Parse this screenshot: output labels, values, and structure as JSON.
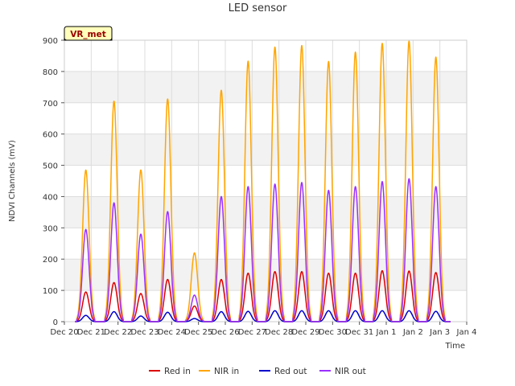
{
  "chart_data": {
    "type": "line",
    "title": "LED sensor",
    "xlabel": "Time",
    "ylabel": "NDVI Channels (mV)",
    "ylim": [
      0,
      900
    ],
    "yticks": [
      0,
      100,
      200,
      300,
      400,
      500,
      600,
      700,
      800,
      900
    ],
    "xlim": [
      0,
      15
    ],
    "xtick_labels": [
      "Dec 20",
      "Dec 21",
      "Dec 22",
      "Dec 23",
      "Dec 24",
      "Dec 25",
      "Dec 26",
      "Dec 27",
      "Dec 28",
      "Dec 29",
      "Dec 30",
      "Dec 31",
      "Jan 1",
      "Jan 2",
      "Jan 3",
      "Jan 4"
    ],
    "annotation": "VR_met",
    "grid": true,
    "legend_position": "bottom-center",
    "day_centers": [
      0.8,
      1.85,
      2.85,
      3.85,
      4.85,
      5.85,
      6.85,
      7.85,
      8.85,
      9.85,
      10.85,
      11.85,
      12.85,
      13.85
    ],
    "series": [
      {
        "name": "Red in",
        "color": "#dd0000",
        "peaks": [
          95,
          125,
          90,
          135,
          50,
          135,
          155,
          160,
          160,
          155,
          155,
          163,
          162,
          157
        ]
      },
      {
        "name": "NIR in",
        "color": "#ffa500",
        "peaks": [
          485,
          705,
          485,
          712,
          220,
          740,
          833,
          878,
          883,
          832,
          862,
          890,
          897,
          846
        ]
      },
      {
        "name": "Red out",
        "color": "#0000cc",
        "peaks": [
          20,
          32,
          18,
          30,
          10,
          32,
          33,
          35,
          35,
          35,
          35,
          35,
          35,
          33
        ]
      },
      {
        "name": "NIR out",
        "color": "#9b30ff",
        "peaks": [
          295,
          380,
          280,
          352,
          85,
          400,
          432,
          440,
          445,
          420,
          432,
          448,
          457,
          432
        ]
      }
    ]
  }
}
